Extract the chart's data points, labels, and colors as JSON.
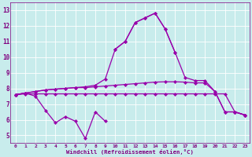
{
  "xlabel": "Windchill (Refroidissement éolien,°C)",
  "background_color": "#c8ecec",
  "line_color": "#9900aa",
  "grid_color": "#ffffff",
  "x_values": [
    0,
    1,
    2,
    3,
    4,
    5,
    6,
    7,
    8,
    9,
    10,
    11,
    12,
    13,
    14,
    15,
    16,
    17,
    18,
    19,
    20,
    21,
    22,
    23
  ],
  "series": {
    "line1": [
      7.6,
      7.7,
      7.5,
      6.6,
      5.8,
      6.2,
      5.9,
      4.8,
      6.5,
      5.9,
      null,
      null,
      null,
      null,
      null,
      null,
      null,
      null,
      null,
      null,
      null,
      null,
      6.5,
      6.3
    ],
    "line2": [
      7.6,
      7.7,
      null,
      null,
      null,
      null,
      null,
      null,
      null,
      null,
      10.5,
      11.0,
      12.2,
      12.5,
      12.8,
      11.8,
      10.3,
      null,
      null,
      null,
      null,
      null,
      null,
      null
    ],
    "line3": [
      7.6,
      7.7,
      7.8,
      7.9,
      7.95,
      8.0,
      8.05,
      8.1,
      8.2,
      8.6,
      10.5,
      11.0,
      12.2,
      12.5,
      12.8,
      11.8,
      10.3,
      8.7,
      8.5,
      8.5,
      7.8,
      6.5,
      6.5,
      6.3
    ],
    "line4": [
      7.6,
      7.7,
      7.8,
      7.9,
      7.95,
      8.0,
      8.05,
      8.05,
      8.1,
      8.15,
      8.2,
      8.25,
      8.3,
      8.35,
      8.4,
      8.42,
      8.42,
      8.4,
      8.35,
      8.35,
      7.8,
      6.5,
      6.5,
      6.3
    ],
    "line5": [
      7.6,
      7.65,
      7.65,
      7.65,
      7.65,
      7.65,
      7.65,
      7.65,
      7.65,
      7.65,
      7.65,
      7.65,
      7.65,
      7.65,
      7.65,
      7.65,
      7.65,
      7.65,
      7.65,
      7.65,
      7.65,
      7.65,
      6.5,
      6.3
    ]
  },
  "ylim": [
    4.5,
    13.5
  ],
  "yticks": [
    5,
    6,
    7,
    8,
    9,
    10,
    11,
    12,
    13
  ],
  "xlim": [
    -0.5,
    23.5
  ],
  "xticks": [
    0,
    1,
    2,
    3,
    4,
    5,
    6,
    7,
    8,
    9,
    10,
    11,
    12,
    13,
    14,
    15,
    16,
    17,
    18,
    19,
    20,
    21,
    22,
    23
  ]
}
